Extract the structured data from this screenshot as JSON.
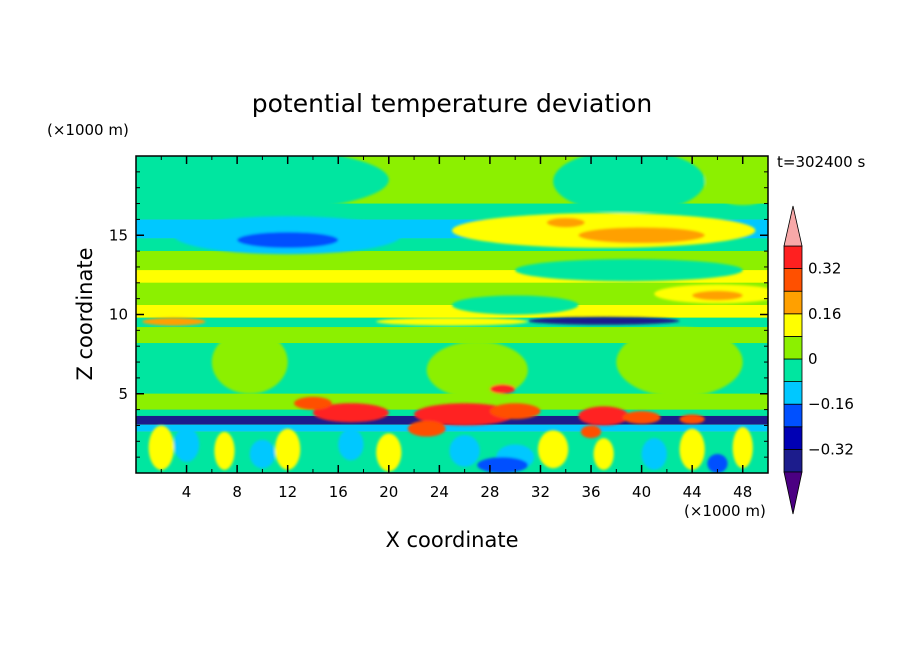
{
  "chart_data": {
    "type": "heatmap",
    "title": "potential temperature deviation",
    "time_label": "t=302400 s",
    "xlabel": "X coordinate",
    "ylabel": "Z coordinate",
    "x_unit": "(×1000 m)",
    "y_unit": "(×1000 m)",
    "x_ticks": [
      "4",
      "8",
      "12",
      "16",
      "20",
      "24",
      "28",
      "32",
      "36",
      "40",
      "44",
      "48"
    ],
    "y_ticks": [
      "5",
      "10",
      "15"
    ],
    "xlim": [
      0,
      50
    ],
    "ylim": [
      0,
      20
    ],
    "colorbar": {
      "labels": [
        "0.32",
        "0.16",
        "0",
        "−0.16",
        "−0.32"
      ],
      "levels": [
        -0.4,
        -0.32,
        -0.24,
        -0.16,
        -0.08,
        0,
        0.08,
        0.16,
        0.24,
        0.32,
        0.4
      ],
      "colors": [
        "#4b0082",
        "#1c1c8c",
        "#0000b4",
        "#0050ff",
        "#00c8ff",
        "#00e6a0",
        "#8cf000",
        "#ffff00",
        "#ffa000",
        "#ff5000",
        "#ff2020",
        "#f8a8a8"
      ]
    },
    "bands": [
      {
        "z0": 0.0,
        "z1": 20.0,
        "value": 0.04
      },
      {
        "z0": 16.0,
        "z1": 17.0,
        "value": -0.04
      },
      {
        "z0": 14.8,
        "z1": 16.0,
        "value": -0.1
      },
      {
        "z0": 14.0,
        "z1": 14.8,
        "value": -0.04
      },
      {
        "z0": 12.8,
        "z1": 14.0,
        "value": 0.04
      },
      {
        "z0": 12.0,
        "z1": 12.8,
        "value": 0.12
      },
      {
        "z0": 10.6,
        "z1": 12.0,
        "value": 0.04
      },
      {
        "z0": 9.8,
        "z1": 10.6,
        "value": 0.12
      },
      {
        "z0": 9.2,
        "z1": 9.8,
        "value": -0.04
      },
      {
        "z0": 8.2,
        "z1": 9.2,
        "value": 0.04
      },
      {
        "z0": 5.0,
        "z1": 8.2,
        "value": -0.04
      },
      {
        "z0": 4.0,
        "z1": 5.0,
        "value": 0.04
      },
      {
        "z0": 3.6,
        "z1": 4.0,
        "value": -0.04
      },
      {
        "z0": 3.05,
        "z1": 3.6,
        "value": -0.36
      },
      {
        "z0": 2.6,
        "z1": 3.05,
        "value": -0.12
      },
      {
        "z0": 0.0,
        "z1": 2.6,
        "value": -0.04
      }
    ],
    "blobs": [
      {
        "x": 6,
        "z": 18.5,
        "rx": 14,
        "rz": 2.2,
        "value": -0.04
      },
      {
        "x": 39,
        "z": 18.4,
        "rx": 6,
        "rz": 2.0,
        "value": -0.04
      },
      {
        "x": 48,
        "z": 18.5,
        "rx": 3,
        "rz": 1.6,
        "value": 0.04
      },
      {
        "x": 12,
        "z": 15.0,
        "rx": 9,
        "rz": 1.2,
        "value": -0.12
      },
      {
        "x": 12,
        "z": 14.7,
        "rx": 4,
        "rz": 0.5,
        "value": -0.22
      },
      {
        "x": 37,
        "z": 15.3,
        "rx": 12,
        "rz": 1.1,
        "value": 0.12
      },
      {
        "x": 40,
        "z": 15.0,
        "rx": 5,
        "rz": 0.5,
        "value": 0.2
      },
      {
        "x": 34,
        "z": 15.8,
        "rx": 1.5,
        "rz": 0.3,
        "value": 0.2
      },
      {
        "x": 39,
        "z": 12.8,
        "rx": 9,
        "rz": 0.7,
        "value": -0.04
      },
      {
        "x": 46,
        "z": 11.3,
        "rx": 5,
        "rz": 0.6,
        "value": 0.12
      },
      {
        "x": 46,
        "z": 11.2,
        "rx": 2,
        "rz": 0.3,
        "value": 0.2
      },
      {
        "x": 30,
        "z": 10.6,
        "rx": 5,
        "rz": 0.6,
        "value": -0.04
      },
      {
        "x": 37,
        "z": 9.6,
        "rx": 6,
        "rz": 0.25,
        "value": -0.34
      },
      {
        "x": 25,
        "z": 9.55,
        "rx": 6,
        "rz": 0.25,
        "value": 0.12
      },
      {
        "x": 3,
        "z": 9.55,
        "rx": 2.5,
        "rz": 0.25,
        "value": 0.2
      },
      {
        "x": 9,
        "z": 7.0,
        "rx": 3,
        "rz": 2.0,
        "value": 0.04
      },
      {
        "x": 27,
        "z": 6.5,
        "rx": 4,
        "rz": 1.8,
        "value": 0.04
      },
      {
        "x": 43,
        "z": 7.0,
        "rx": 5,
        "rz": 2.2,
        "value": 0.04
      },
      {
        "x": 29,
        "z": 5.3,
        "rx": 1.0,
        "rz": 0.3,
        "value": 0.36
      },
      {
        "x": 17,
        "z": 3.8,
        "rx": 3,
        "rz": 0.6,
        "value": 0.36
      },
      {
        "x": 14,
        "z": 4.4,
        "rx": 1.5,
        "rz": 0.4,
        "value": 0.28
      },
      {
        "x": 26,
        "z": 3.7,
        "rx": 4,
        "rz": 0.7,
        "value": 0.36
      },
      {
        "x": 30,
        "z": 3.9,
        "rx": 2,
        "rz": 0.5,
        "value": 0.28
      },
      {
        "x": 37,
        "z": 3.6,
        "rx": 2,
        "rz": 0.6,
        "value": 0.36
      },
      {
        "x": 40,
        "z": 3.5,
        "rx": 1.5,
        "rz": 0.4,
        "value": 0.28
      },
      {
        "x": 44,
        "z": 3.4,
        "rx": 1.0,
        "rz": 0.3,
        "value": 0.28
      },
      {
        "x": 23,
        "z": 2.8,
        "rx": 1.5,
        "rz": 0.5,
        "value": 0.28
      },
      {
        "x": 36,
        "z": 2.6,
        "rx": 0.8,
        "rz": 0.4,
        "value": 0.28
      },
      {
        "x": 2,
        "z": 1.6,
        "rx": 1.0,
        "rz": 1.4,
        "value": 0.12
      },
      {
        "x": 7,
        "z": 1.4,
        "rx": 0.8,
        "rz": 1.2,
        "value": 0.12
      },
      {
        "x": 12,
        "z": 1.5,
        "rx": 1.0,
        "rz": 1.3,
        "value": 0.12
      },
      {
        "x": 20,
        "z": 1.3,
        "rx": 1.0,
        "rz": 1.2,
        "value": 0.12
      },
      {
        "x": 33,
        "z": 1.5,
        "rx": 1.2,
        "rz": 1.2,
        "value": 0.12
      },
      {
        "x": 37,
        "z": 1.2,
        "rx": 0.8,
        "rz": 1.0,
        "value": 0.12
      },
      {
        "x": 44,
        "z": 1.5,
        "rx": 1.0,
        "rz": 1.3,
        "value": 0.12
      },
      {
        "x": 48,
        "z": 1.6,
        "rx": 0.8,
        "rz": 1.3,
        "value": 0.12
      },
      {
        "x": 4,
        "z": 1.8,
        "rx": 1.0,
        "rz": 1.1,
        "value": -0.12
      },
      {
        "x": 10,
        "z": 1.2,
        "rx": 1.0,
        "rz": 0.9,
        "value": -0.12
      },
      {
        "x": 17,
        "z": 1.8,
        "rx": 1.0,
        "rz": 1.0,
        "value": -0.12
      },
      {
        "x": 26,
        "z": 1.4,
        "rx": 1.2,
        "rz": 1.0,
        "value": -0.12
      },
      {
        "x": 30,
        "z": 1.0,
        "rx": 1.5,
        "rz": 0.8,
        "value": -0.12
      },
      {
        "x": 41,
        "z": 1.2,
        "rx": 1.0,
        "rz": 1.0,
        "value": -0.12
      },
      {
        "x": 29,
        "z": 0.5,
        "rx": 2.0,
        "rz": 0.5,
        "value": -0.2
      },
      {
        "x": 46,
        "z": 0.6,
        "rx": 0.8,
        "rz": 0.6,
        "value": -0.2
      }
    ]
  }
}
